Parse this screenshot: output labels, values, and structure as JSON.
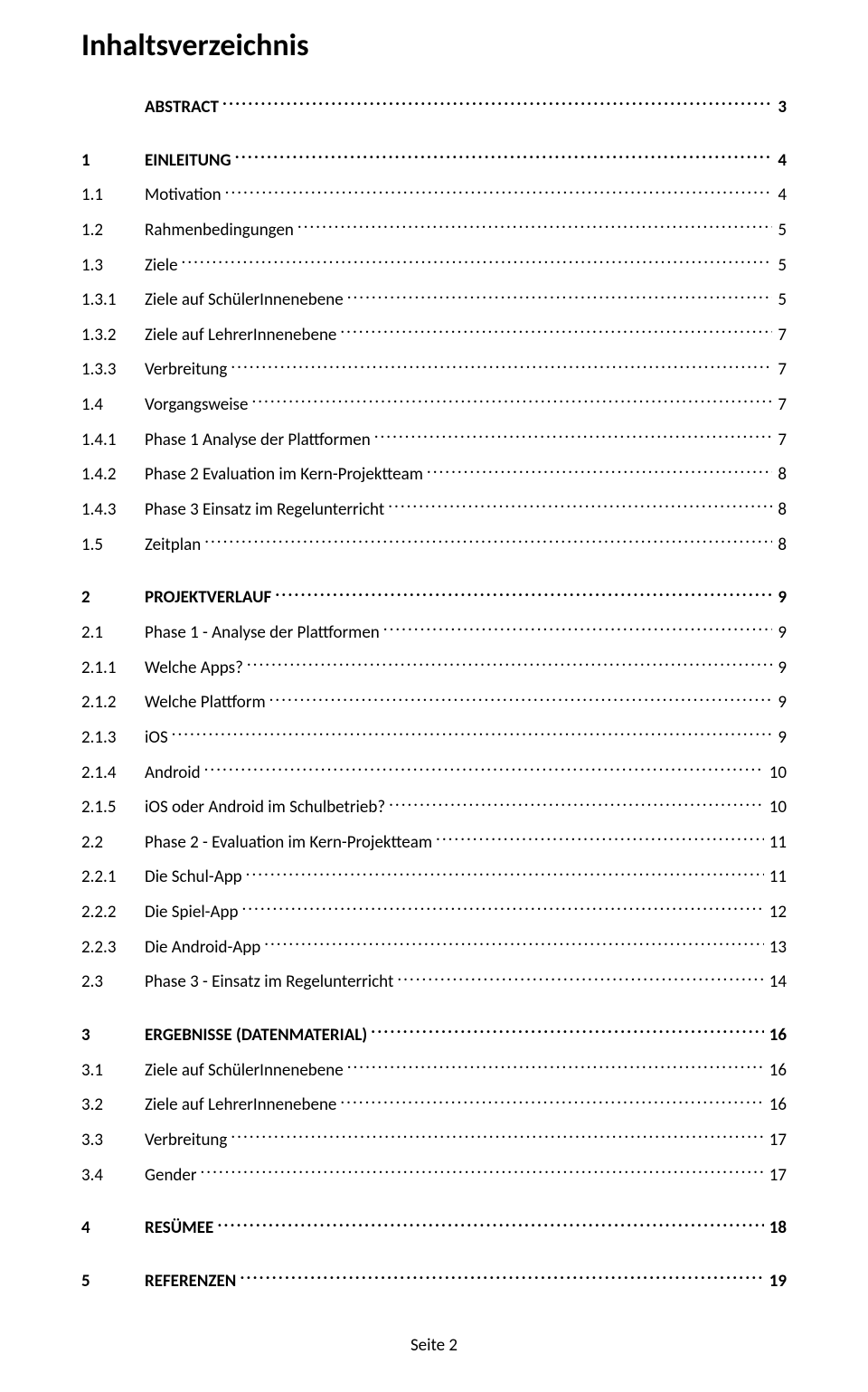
{
  "title": "Inhaltsverzeichnis",
  "footer": "Seite 2",
  "numColWidth": 70,
  "fontSize": 19,
  "titleFontSize": 34,
  "entries": [
    {
      "num": "",
      "label": "ABSTRACT",
      "page": "3",
      "bold": true,
      "gapAfter": true
    },
    {
      "num": "1",
      "label": "EINLEITUNG",
      "page": "4",
      "bold": true
    },
    {
      "num": "1.1",
      "label": "Motivation",
      "page": "4"
    },
    {
      "num": "1.2",
      "label": "Rahmenbedingungen",
      "page": "5"
    },
    {
      "num": "1.3",
      "label": "Ziele",
      "page": "5"
    },
    {
      "num": "1.3.1",
      "label": "Ziele auf SchülerInnenebene",
      "page": "5"
    },
    {
      "num": "1.3.2",
      "label": "Ziele auf LehrerInnenebene",
      "page": "7"
    },
    {
      "num": "1.3.3",
      "label": "Verbreitung",
      "page": "7"
    },
    {
      "num": "1.4",
      "label": "Vorgangsweise",
      "page": "7"
    },
    {
      "num": "1.4.1",
      "label": "Phase 1 Analyse der Plattformen",
      "page": "7"
    },
    {
      "num": "1.4.2",
      "label": "Phase 2 Evaluation im Kern-Projektteam",
      "page": "8"
    },
    {
      "num": "1.4.3",
      "label": "Phase 3 Einsatz im Regelunterricht",
      "page": "8"
    },
    {
      "num": "1.5",
      "label": "Zeitplan",
      "page": "8",
      "gapAfter": true
    },
    {
      "num": "2",
      "label": "PROJEKTVERLAUF",
      "page": "9",
      "bold": true
    },
    {
      "num": "2.1",
      "label": "Phase 1 - Analyse der Plattformen",
      "page": "9"
    },
    {
      "num": "2.1.1",
      "label": "Welche Apps?",
      "page": "9"
    },
    {
      "num": "2.1.2",
      "label": "Welche Plattform",
      "page": "9"
    },
    {
      "num": "2.1.3",
      "label": "iOS",
      "page": "9"
    },
    {
      "num": "2.1.4",
      "label": "Android",
      "page": "10"
    },
    {
      "num": "2.1.5",
      "label": "iOS oder Android im Schulbetrieb?",
      "page": "10"
    },
    {
      "num": "2.2",
      "label": "Phase 2 - Evaluation im Kern-Projektteam",
      "page": "11"
    },
    {
      "num": "2.2.1",
      "label": "Die Schul-App",
      "page": "11"
    },
    {
      "num": "2.2.2",
      "label": "Die Spiel-App",
      "page": "12"
    },
    {
      "num": "2.2.3",
      "label": "Die Android-App",
      "page": "13"
    },
    {
      "num": "2.3",
      "label": "Phase 3 - Einsatz im Regelunterricht",
      "page": "14",
      "gapAfter": true
    },
    {
      "num": "3",
      "label": "ERGEBNISSE (DATENMATERIAL)",
      "page": "16",
      "bold": true
    },
    {
      "num": "3.1",
      "label": "Ziele auf SchülerInnenebene",
      "page": "16"
    },
    {
      "num": "3.2",
      "label": "Ziele auf LehrerInnenebene",
      "page": "16"
    },
    {
      "num": "3.3",
      "label": "Verbreitung",
      "page": "17"
    },
    {
      "num": "3.4",
      "label": "Gender",
      "page": "17",
      "gapAfter": true
    },
    {
      "num": "4",
      "label": "RESÜMEE",
      "page": "18",
      "bold": true,
      "gapAfter": true
    },
    {
      "num": "5",
      "label": "REFERENZEN",
      "page": "19",
      "bold": true
    }
  ]
}
